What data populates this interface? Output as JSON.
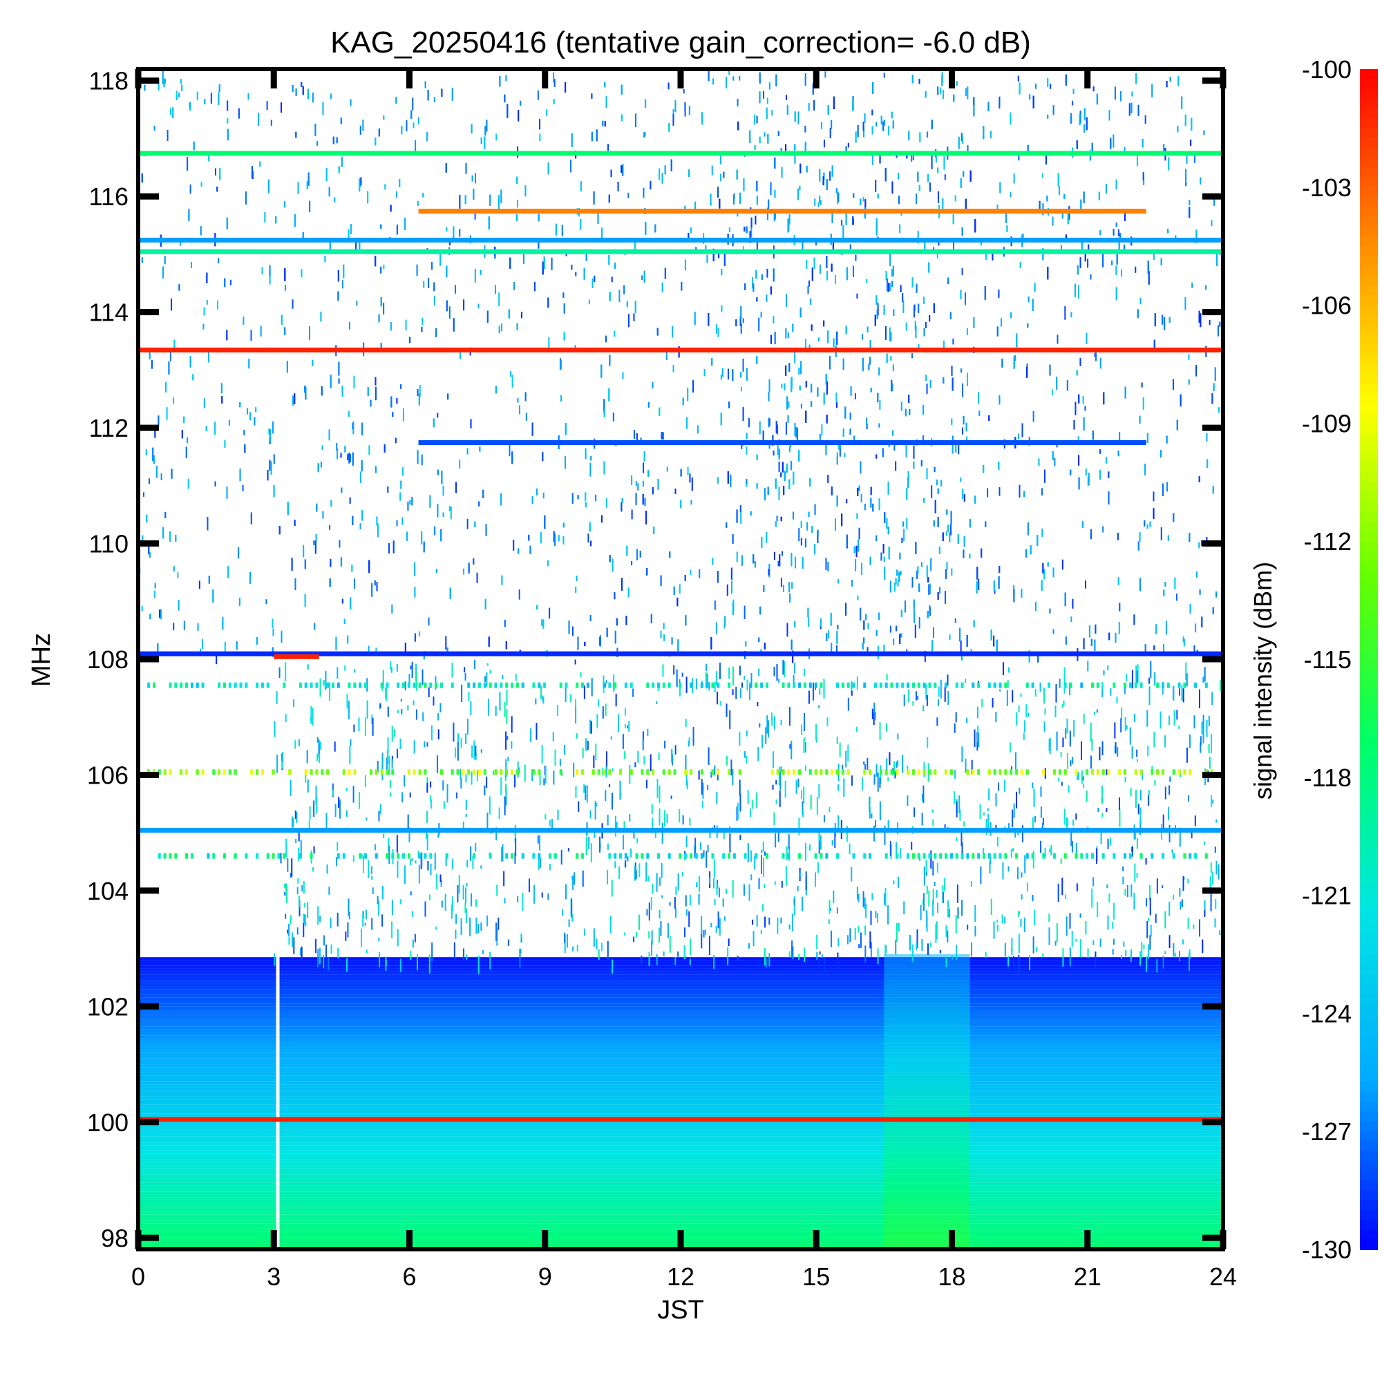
{
  "chart_data": {
    "type": "heatmap",
    "title": "KAG_20250416 (tentative gain_correction= -6.0 dB)",
    "xlabel": "JST",
    "ylabel": "MHz",
    "xlim": [
      0,
      24
    ],
    "ylim": [
      97.8,
      118.2
    ],
    "x_ticks": [
      0,
      3,
      6,
      9,
      12,
      15,
      18,
      21,
      24
    ],
    "x_tick_labels": [
      "0",
      "3",
      "6",
      "9",
      "12",
      "15",
      "18",
      "21",
      "24"
    ],
    "y_ticks": [
      98,
      100,
      102,
      104,
      106,
      108,
      110,
      112,
      114,
      116,
      118
    ],
    "y_tick_labels": [
      "98",
      "100",
      "102",
      "104",
      "106",
      "108",
      "110",
      "112",
      "114",
      "116",
      "118"
    ],
    "colorbar": {
      "label": "signal intensity (dBm)",
      "range": [
        -130,
        -100
      ],
      "ticks": [
        -100,
        -103,
        -106,
        -109,
        -112,
        -115,
        -118,
        -121,
        -124,
        -127,
        -130
      ],
      "tick_labels": [
        "-100",
        "-103",
        "-106",
        "-109",
        "-112",
        "-115",
        "-118",
        "-121",
        "-124",
        "-127",
        "-130"
      ],
      "colormap": [
        "#0000ff",
        "#00aaff",
        "#00e5e5",
        "#00ff66",
        "#66ff00",
        "#ffff00",
        "#ff8800",
        "#ff0000"
      ]
    },
    "lines": [
      {
        "freq": 116.75,
        "x_start": 0,
        "x_end": 24,
        "level": -117.5
      },
      {
        "freq": 115.75,
        "x_start": 6.2,
        "x_end": 22.3,
        "level": -104
      },
      {
        "freq": 115.25,
        "x_start": 0,
        "x_end": 24,
        "level": -126
      },
      {
        "freq": 115.05,
        "x_start": 0,
        "x_end": 24,
        "level": -119
      },
      {
        "freq": 113.35,
        "x_start": 0,
        "x_end": 24,
        "level": -101
      },
      {
        "freq": 111.75,
        "x_start": 6.2,
        "x_end": 22.3,
        "level": -128
      },
      {
        "freq": 108.1,
        "x_start": 0,
        "x_end": 24,
        "level": -129
      },
      {
        "freq": 108.05,
        "x_start": 3.0,
        "x_end": 4.0,
        "level": -101
      },
      {
        "freq": 105.05,
        "x_start": 0,
        "x_end": 24,
        "level": -126
      },
      {
        "freq": 100.05,
        "x_start": 0,
        "x_end": 24,
        "level": -101
      }
    ]
  }
}
